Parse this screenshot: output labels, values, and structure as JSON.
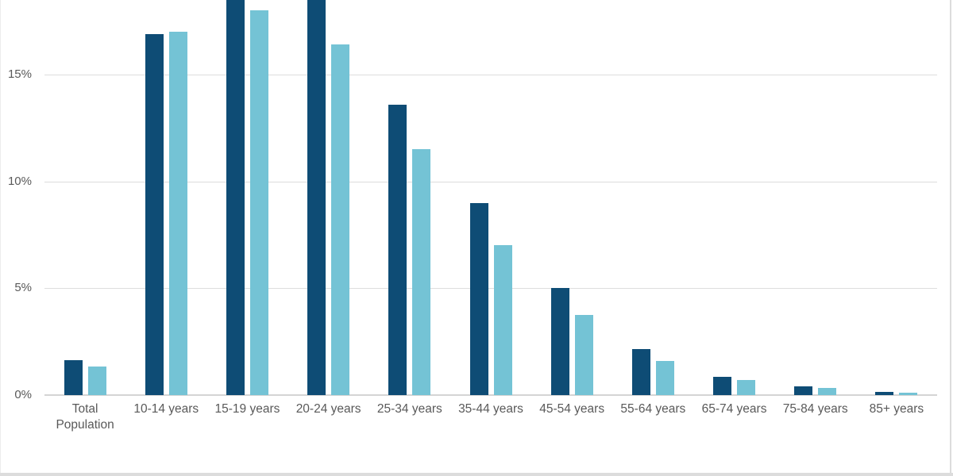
{
  "chart_data": {
    "type": "bar",
    "title": "",
    "legend": "none",
    "categories": [
      "Total Population",
      "10-14 years",
      "15-19 years",
      "20-24 years",
      "25-34 years",
      "35-44 years",
      "45-54 years",
      "55-64 years",
      "65-74 years",
      "75-84 years",
      "85+ years"
    ],
    "series": [
      {
        "name": "dark-blue",
        "color": "#0E4C75",
        "values": [
          1.65,
          16.9,
          null,
          null,
          13.6,
          9.0,
          5.0,
          2.15,
          0.85,
          0.4,
          0.15
        ],
        "clipped": [
          2,
          3
        ]
      },
      {
        "name": "light-blue",
        "color": "#74C3D5",
        "values": [
          1.35,
          17.0,
          18.0,
          16.4,
          11.5,
          7.0,
          3.75,
          1.6,
          0.7,
          0.35,
          0.1
        ],
        "clipped": []
      }
    ],
    "xlabel": "",
    "ylabel": "",
    "yticks": [
      0,
      5,
      10,
      15
    ],
    "ytick_labels": [
      "0%",
      "5%",
      "10%",
      "15%"
    ],
    "ylim": [
      0,
      18.5
    ],
    "grid": true,
    "note": "Dark-blue bars for 15-19 years and 20-24 years extend past the top edge of the visible area (values above ~18.5%).",
    "colors": {
      "grid": "#DDDDDD",
      "axis": "#D4D4D4",
      "text": "#595959",
      "card_border": "#DCDCDC"
    }
  }
}
